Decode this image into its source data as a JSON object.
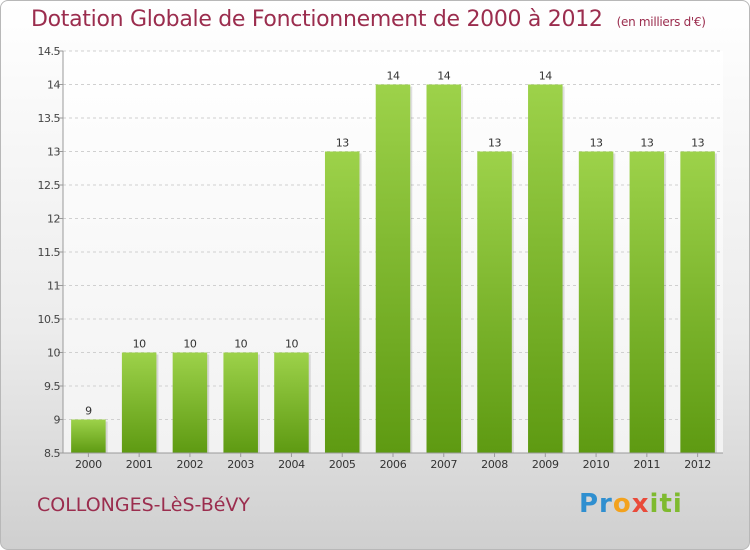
{
  "header": {
    "title": "Dotation Globale de Fonctionnement de 2000 à 2012",
    "subtitle": "(en milliers d'€)"
  },
  "footer": {
    "commune": "COLLONGES-LèS-BéVY",
    "logo": [
      "Pr",
      "o",
      "x",
      "iti"
    ]
  },
  "colors": {
    "title": "#9b2d4e",
    "bar_top": "#9dd24a",
    "bar_bottom": "#5e9a12",
    "grid": "#d0d0d0"
  },
  "chart_data": {
    "type": "bar",
    "categories": [
      "2000",
      "2001",
      "2002",
      "2003",
      "2004",
      "2005",
      "2006",
      "2007",
      "2008",
      "2009",
      "2010",
      "2011",
      "2012"
    ],
    "values": [
      9,
      10,
      10,
      10,
      10,
      13,
      14,
      14,
      13,
      14,
      13,
      13,
      13
    ],
    "data_labels": [
      "9",
      "10",
      "10",
      "10",
      "10",
      "13",
      "14",
      "14",
      "13",
      "14",
      "13",
      "13",
      "13"
    ],
    "y_ticks": [
      8.5,
      9,
      9.5,
      10,
      10.5,
      11,
      11.5,
      12,
      12.5,
      13,
      13.5,
      14,
      14.5
    ],
    "y_tick_labels": [
      "8.5",
      "9",
      "9.5",
      "10",
      "10.5",
      "11",
      "11.5",
      "12",
      "12.5",
      "13",
      "13.5",
      "14",
      "14.5"
    ],
    "ylim": [
      8.5,
      14.5
    ],
    "grid": true,
    "legend": "none"
  }
}
